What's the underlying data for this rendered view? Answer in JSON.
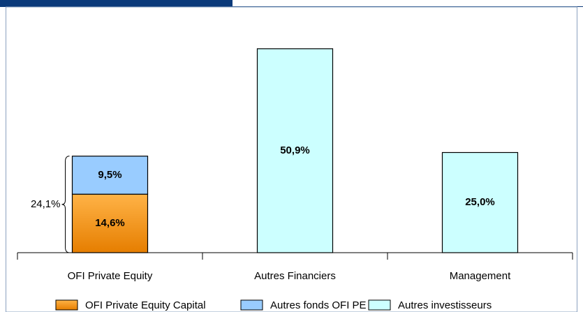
{
  "chart_data": {
    "type": "stacked_bar",
    "categories": [
      "OFI Private Equity",
      "Autres Financiers",
      "Management"
    ],
    "series": [
      {
        "name": "OFI Private Equity Capital",
        "color": "#f39a2a",
        "values": [
          14.6,
          null,
          null
        ],
        "value_labels": [
          "14,6%",
          null,
          null
        ]
      },
      {
        "name": "Autres fonds OFI PE",
        "color": "#99ccff",
        "values": [
          9.5,
          null,
          null
        ],
        "value_labels": [
          "9,5%",
          null,
          null
        ]
      },
      {
        "name": "Autres investisseurs",
        "color": "#ccffff",
        "values": [
          null,
          50.9,
          25.0
        ],
        "value_labels": [
          null,
          "50,9%",
          "25,0%"
        ]
      }
    ],
    "annotations": [
      "24,1%"
    ]
  }
}
